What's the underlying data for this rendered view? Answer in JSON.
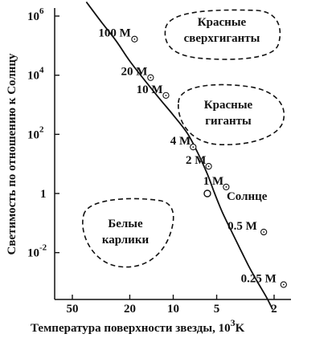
{
  "chart_data": {
    "type": "line",
    "title": "",
    "xlabel": "Температура поверхности звезды, 10",
    "xlabel_unit_power": "3",
    "xlabel_unit": "K",
    "ylabel": "Светимость по отношению к Солнцу",
    "x_scale": "log",
    "y_scale": "log",
    "x_reversed": true,
    "xlim": [
      70,
      1.5
    ],
    "ylim": [
      0.0001,
      10000000
    ],
    "x_ticks": [
      {
        "value": 50,
        "label": "50"
      },
      {
        "value": 20,
        "label": "20"
      },
      {
        "value": 10,
        "label": "10"
      },
      {
        "value": 5,
        "label": "5"
      },
      {
        "value": 2,
        "label": "2"
      }
    ],
    "y_ticks": [
      {
        "value": 1000000,
        "base": "10",
        "exp": "6"
      },
      {
        "value": 10000,
        "base": "10",
        "exp": "4"
      },
      {
        "value": 100,
        "base": "10",
        "exp": "2"
      },
      {
        "value": 1,
        "base": "1",
        "exp": ""
      },
      {
        "value": 0.01,
        "base": "10",
        "exp": "-2"
      }
    ],
    "main_sequence": {
      "x": [
        40,
        32,
        25,
        20,
        15,
        12,
        10,
        8,
        6.8,
        5.8,
        5.2,
        4.6,
        4.0,
        3.4,
        3.0,
        2.6,
        2.25,
        2.05
      ],
      "y": [
        3000000,
        700000,
        150000,
        30000,
        5000,
        1300,
        450,
        110,
        25,
        4.5,
        1.1,
        0.25,
        0.06,
        0.012,
        0.0035,
        0.001,
        0.0003,
        0.00012
      ]
    },
    "mass_labels": [
      {
        "text": "100 M",
        "marker": "sun",
        "x": 33,
        "y": 200000
      },
      {
        "text": "20 M",
        "marker": "sun",
        "x": 23,
        "y": 10000
      },
      {
        "text": "10 M",
        "marker": "sun",
        "x": 18,
        "y": 2500
      },
      {
        "text": "4 M",
        "marker": "sun",
        "x": 10.5,
        "y": 45
      },
      {
        "text": "2 M",
        "marker": "sun",
        "x": 8.2,
        "y": 10
      },
      {
        "text": "1 M",
        "marker": "sun",
        "x": 6.2,
        "y": 2
      },
      {
        "text": "0.5 M",
        "marker": "sun",
        "x": 4.2,
        "y": 0.06
      },
      {
        "text": "0.25 M",
        "marker": "sun",
        "x": 3.4,
        "y": 0.001
      }
    ],
    "sun_point": {
      "x": 5.8,
      "y": 1,
      "label": "Солнце"
    },
    "regions": [
      {
        "name": "Красные сверхгиганты",
        "lines": [
          "Красные",
          "сверхгиганты"
        ]
      },
      {
        "name": "Красные гиганты",
        "lines": [
          "Красные",
          "гиганты"
        ]
      },
      {
        "name": "Белые карлики",
        "lines": [
          "Белые",
          "карлики"
        ]
      }
    ],
    "grid": false,
    "legend": "none"
  }
}
